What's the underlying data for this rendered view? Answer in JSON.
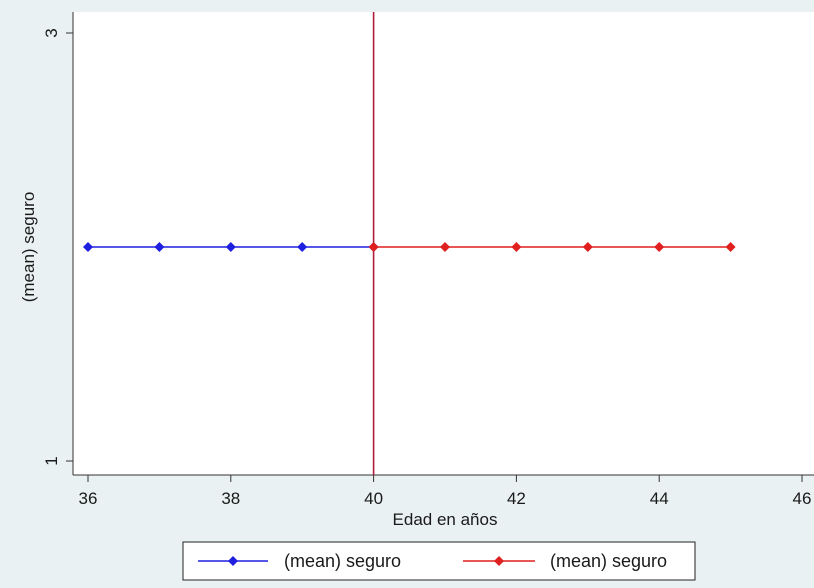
{
  "chart_data": {
    "type": "line",
    "title": "",
    "xlabel": "Edad en años",
    "ylabel": "(mean) seguro",
    "xlim": [
      36,
      46
    ],
    "ylim": [
      1,
      3
    ],
    "x_ticks": [
      36,
      38,
      40,
      42,
      44,
      46
    ],
    "y_ticks": [
      1,
      3
    ],
    "x_tick_labels": [
      "36",
      "38",
      "40",
      "42",
      "44",
      "46"
    ],
    "y_tick_labels": [
      "1",
      "3"
    ],
    "grid": false,
    "legend_position": "bottom",
    "reference_line": {
      "axis": "x",
      "value": 40,
      "color": "#b01c3c"
    },
    "series": [
      {
        "name": "(mean) seguro",
        "color": "#1f1fe0",
        "x": [
          36,
          37,
          38,
          39,
          40
        ],
        "y": [
          2,
          2,
          2,
          2,
          2
        ]
      },
      {
        "name": "(mean) seguro",
        "color": "#e01f1f",
        "x": [
          40,
          41,
          42,
          43,
          44,
          45
        ],
        "y": [
          2,
          2,
          2,
          2,
          2,
          2
        ]
      }
    ]
  }
}
